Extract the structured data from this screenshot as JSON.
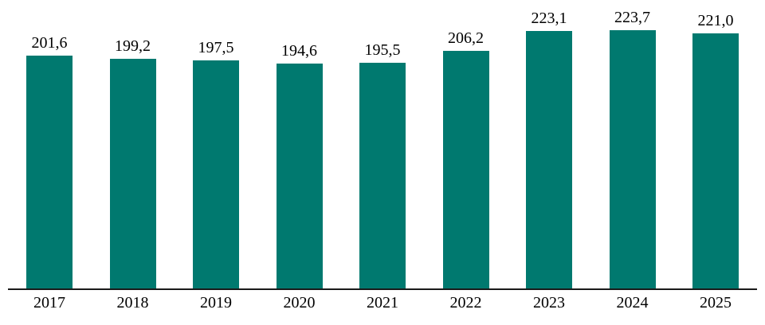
{
  "chart_data": {
    "type": "bar",
    "categories": [
      "2017",
      "2018",
      "2019",
      "2020",
      "2021",
      "2022",
      "2023",
      "2024",
      "2025"
    ],
    "values": [
      201.6,
      199.2,
      197.5,
      194.6,
      195.5,
      206.2,
      223.1,
      223.7,
      221.0
    ],
    "value_labels": [
      "201,6",
      "199,2",
      "197,5",
      "194,6",
      "195,5",
      "206,2",
      "223,1",
      "223,7",
      "221,0"
    ],
    "title": "",
    "xlabel": "",
    "ylabel": "",
    "ylim": [
      0,
      250
    ],
    "grid": false,
    "legend": "none",
    "data_labels_position": "above-bars",
    "decimal_separator": ","
  },
  "colors": {
    "bar": "#00796F",
    "axis": "#1a1a1a",
    "background": "#ffffff",
    "text": "#000000"
  }
}
